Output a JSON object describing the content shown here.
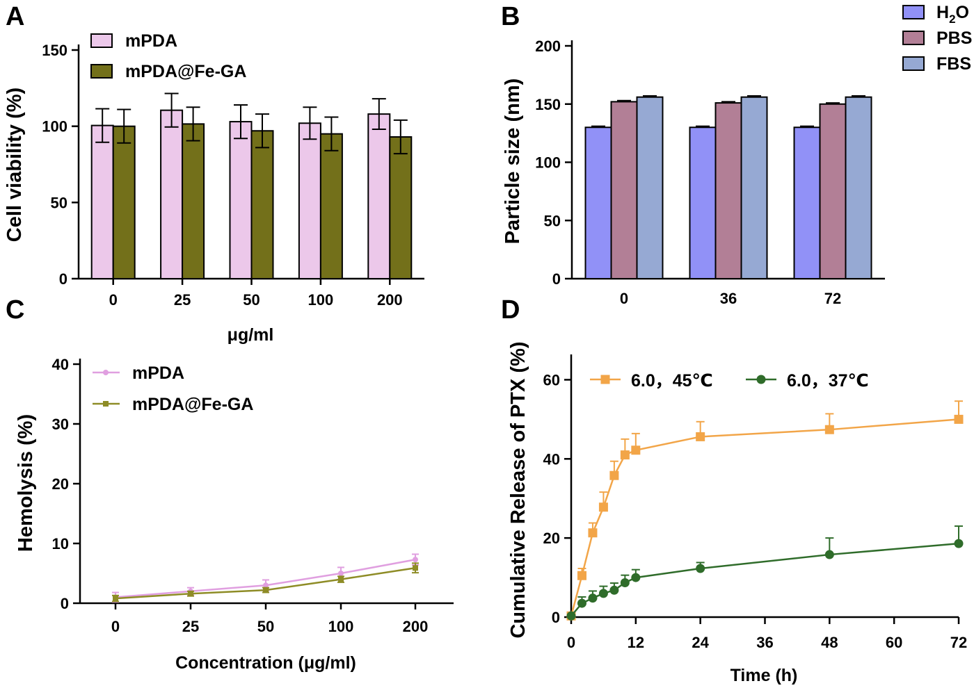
{
  "chart_data": [
    {
      "panel": "A",
      "type": "bar",
      "title": "",
      "xlabel": "μg/ml",
      "ylabel": "Cell viability (%)",
      "ylim": [
        0,
        150
      ],
      "yticks": [
        "0",
        "50",
        "100",
        "150"
      ],
      "categories": [
        "0",
        "25",
        "50",
        "100",
        "200"
      ],
      "series": [
        {
          "name": "mPDA",
          "color": "#ecc8ea",
          "values": [
            100.5,
            110.5,
            103,
            102,
            108
          ],
          "errors": [
            11,
            11,
            11,
            10.5,
            10
          ]
        },
        {
          "name": "mPDA@Fe-GA",
          "color": "#73701a",
          "values": [
            100,
            101.5,
            97,
            95,
            93
          ],
          "errors": [
            11,
            11,
            11,
            11,
            11
          ]
        }
      ],
      "legend": "top-left"
    },
    {
      "panel": "B",
      "type": "bar",
      "title": "",
      "xlabel": "",
      "ylabel": "Particle size (nm)",
      "ylim": [
        0,
        200
      ],
      "yticks": [
        "0",
        "50",
        "100",
        "150",
        "200"
      ],
      "categories": [
        "0",
        "36",
        "72"
      ],
      "series": [
        {
          "name": "H2O",
          "color": "#9191f7",
          "values": [
            130,
            130,
            130
          ],
          "errors": [
            1,
            1,
            1
          ]
        },
        {
          "name": "PBS",
          "color": "#b27f96",
          "values": [
            152,
            151,
            150
          ],
          "errors": [
            1,
            1,
            1
          ]
        },
        {
          "name": "FBS",
          "color": "#96a9d3",
          "values": [
            156,
            156,
            156
          ],
          "errors": [
            1,
            1,
            1
          ]
        }
      ],
      "legend_labels": {
        "h2o_main": "H",
        "h2o_sub": "2",
        "h2o_tail": "O"
      },
      "legend": "top-right"
    },
    {
      "panel": "C",
      "type": "line",
      "title": "",
      "xlabel": "Concentration (μg/ml)",
      "ylabel": "Hemolysis (%)",
      "ylim": [
        0,
        40
      ],
      "yticks": [
        "0",
        "10",
        "20",
        "30",
        "40"
      ],
      "categories": [
        "0",
        "25",
        "50",
        "100",
        "200"
      ],
      "series": [
        {
          "name": "mPDA",
          "color": "#e09fe0",
          "marker": "circle",
          "values": [
            1.0,
            2.0,
            3.0,
            5.0,
            7.3
          ],
          "errors": [
            0.8,
            0.6,
            0.9,
            1.0,
            0.9
          ]
        },
        {
          "name": "mPDA@Fe-GA",
          "color": "#8e8c26",
          "marker": "square",
          "values": [
            0.8,
            1.6,
            2.2,
            4.0,
            5.9
          ],
          "errors": [
            0.5,
            0.4,
            0.4,
            0.5,
            0.8
          ]
        }
      ],
      "legend": "top-left"
    },
    {
      "panel": "D",
      "type": "line",
      "title": "",
      "xlabel": "Time (h)",
      "ylabel": "Cumulative Release of PTX (%)",
      "xlim": [
        0,
        72
      ],
      "ylim": [
        0,
        65
      ],
      "xticks": [
        "0",
        "12",
        "24",
        "36",
        "48",
        "60",
        "72"
      ],
      "yticks": [
        "0",
        "20",
        "40",
        "60"
      ],
      "series": [
        {
          "name": "6.0，45℃",
          "color": "#f2a548",
          "marker": "square",
          "x": [
            0,
            2,
            4,
            6,
            8,
            10,
            12,
            24,
            48,
            72
          ],
          "values": [
            0.3,
            10.5,
            21.3,
            27.8,
            35.8,
            41.0,
            42.2,
            45.6,
            47.4,
            50.0
          ],
          "errors": [
            0,
            1.8,
            2.5,
            3.8,
            3.6,
            4.0,
            4.2,
            3.8,
            4.0,
            4.6
          ]
        },
        {
          "name": "6.0，37℃",
          "color": "#2f6c2a",
          "marker": "circle",
          "x": [
            0,
            2,
            4,
            6,
            8,
            10,
            12,
            24,
            48,
            72
          ],
          "values": [
            0.3,
            3.5,
            4.8,
            6.0,
            6.8,
            8.7,
            10.0,
            12.3,
            15.8,
            18.6
          ],
          "errors": [
            0,
            1.6,
            1.8,
            1.8,
            1.8,
            1.9,
            2.0,
            1.5,
            4.2,
            4.4
          ]
        }
      ],
      "legend": "top"
    }
  ]
}
